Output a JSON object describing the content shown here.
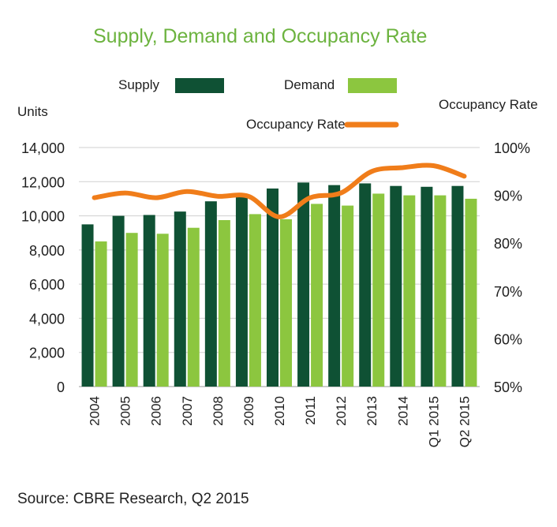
{
  "colors": {
    "supply": "#0f5134",
    "demand": "#8cc63f",
    "occupancy": "#f07d1a",
    "title": "#6cb33f",
    "grid": "#cfcfcf"
  },
  "source": "Source: CBRE Research, Q2 2015",
  "chart_data": {
    "type": "bar",
    "title": "Supply, Demand and Occupancy Rate",
    "ylabel": "Units",
    "y2label": "Occupancy Rate",
    "categories": [
      "2004",
      "2005",
      "2006",
      "2007",
      "2008",
      "2009",
      "2010",
      "2011",
      "2012",
      "2013",
      "2014",
      "Q1 2015",
      "Q2 2015"
    ],
    "series": [
      {
        "name": "Supply",
        "type": "bar",
        "axis": "left",
        "values": [
          9500,
          10000,
          10050,
          10250,
          10850,
          11100,
          11600,
          11950,
          11800,
          11900,
          11750,
          11700,
          11750
        ]
      },
      {
        "name": "Demand",
        "type": "bar",
        "axis": "left",
        "values": [
          8500,
          9000,
          8950,
          9300,
          9750,
          10100,
          9800,
          10700,
          10600,
          11300,
          11200,
          11200,
          11000
        ]
      },
      {
        "name": "Occupancy Rate",
        "type": "line",
        "axis": "right",
        "values": [
          89.5,
          90.5,
          89.5,
          90.8,
          89.8,
          89.8,
          85.5,
          89.5,
          90.5,
          95.0,
          95.8,
          96.2,
          94.0
        ]
      }
    ],
    "ylim": [
      0,
      14000
    ],
    "yticks": [
      "0",
      "2,000",
      "4,000",
      "6,000",
      "8,000",
      "10,000",
      "12,000",
      "14,000"
    ],
    "y2lim": [
      50,
      100
    ],
    "y2ticks": [
      "50%",
      "60%",
      "70%",
      "80%",
      "90%",
      "100%"
    ],
    "grid": true,
    "legend": "top"
  }
}
